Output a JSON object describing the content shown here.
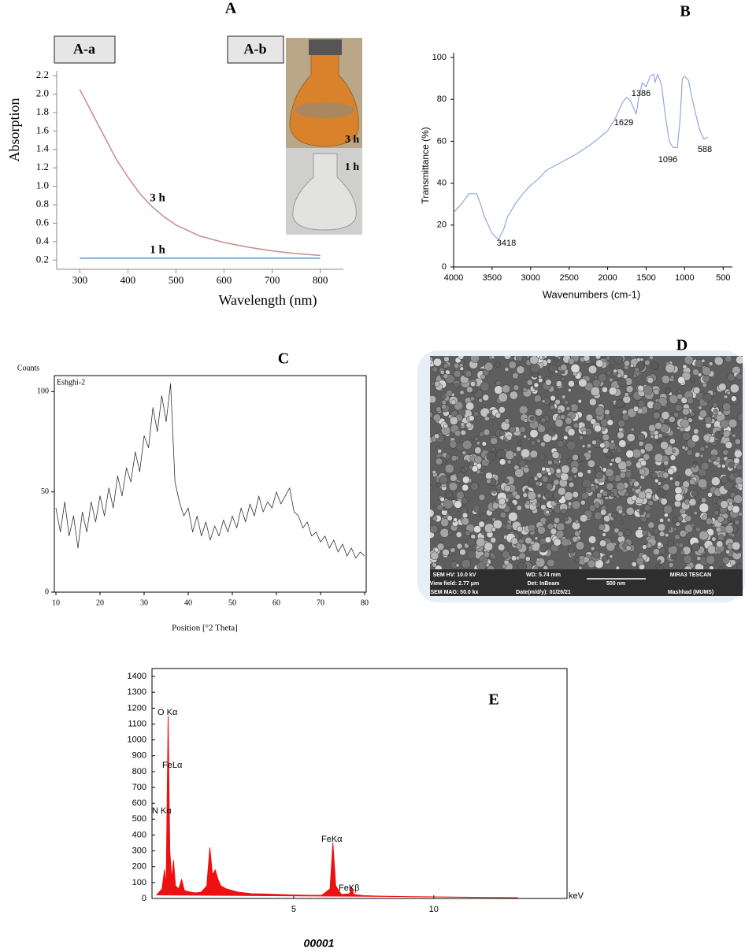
{
  "panel_a": {
    "label": "A",
    "boxes": [
      "A-a",
      "A-b"
    ],
    "photo_labels": [
      "3 h",
      "1 h"
    ]
  },
  "chart_data": [
    {
      "type": "line",
      "xlabel": "Wavelength (nm)",
      "ylabel": "Absorption",
      "x": [
        300,
        325,
        350,
        375,
        400,
        425,
        450,
        475,
        500,
        550,
        600,
        650,
        700,
        750,
        800
      ],
      "series": [
        {
          "name": "3 h",
          "color": "#c98a8a",
          "values": [
            2.05,
            1.8,
            1.55,
            1.3,
            1.1,
            0.92,
            0.78,
            0.67,
            0.58,
            0.46,
            0.39,
            0.34,
            0.3,
            0.27,
            0.25
          ]
        },
        {
          "name": "1 h",
          "color": "#5b9bd5",
          "values": [
            0.22,
            0.22,
            0.22,
            0.22,
            0.22,
            0.22,
            0.22,
            0.22,
            0.22,
            0.22,
            0.22,
            0.22,
            0.22,
            0.22,
            0.22
          ]
        }
      ],
      "xlim": [
        252,
        848
      ],
      "xticks": [
        300,
        400,
        500,
        600,
        700,
        800
      ],
      "ylim": [
        0.1,
        2.2
      ],
      "yticks": [
        0.2,
        0.4,
        0.6,
        0.8,
        {
          "value": 1,
          "label": "1.0"
        },
        1.2,
        1.4,
        1.6,
        1.8,
        {
          "value": 2,
          "label": "2.0"
        },
        2.2
      ]
    },
    {
      "type": "line",
      "panel_label": "B",
      "xlabel": "Wavenumbers (cm-1)",
      "ylabel": "Transmittance (%)",
      "x": [
        4000,
        3900,
        3800,
        3700,
        3650,
        3600,
        3500,
        3418,
        3350,
        3300,
        3200,
        3100,
        3000,
        2900,
        2800,
        2600,
        2400,
        2200,
        2000,
        1900,
        1800,
        1750,
        1700,
        1629,
        1600,
        1550,
        1500,
        1450,
        1400,
        1386,
        1350,
        1300,
        1250,
        1200,
        1150,
        1096,
        1060,
        1030,
        1000,
        950,
        900,
        850,
        800,
        750,
        700
      ],
      "series": [
        {
          "color": "#8ea9db",
          "values": [
            26,
            30,
            35,
            35,
            30,
            24,
            16,
            13,
            18,
            24,
            30,
            35,
            39,
            42,
            46,
            50,
            54,
            59,
            65,
            71,
            79,
            81,
            79,
            73,
            80,
            88,
            86,
            91,
            92,
            88,
            92,
            87,
            72,
            60,
            57,
            57,
            70,
            90,
            91,
            89,
            80,
            72,
            65,
            61,
            62
          ]
        }
      ],
      "peak_labels": [
        3418,
        1629,
        1386,
        1096,
        588
      ],
      "xlim": [
        4000,
        380
      ],
      "xticks": [
        4000,
        3500,
        3000,
        2500,
        2000,
        1500,
        1000,
        500
      ],
      "ylim": [
        0,
        100
      ],
      "yticks": [
        0,
        20,
        40,
        60,
        80,
        100
      ]
    },
    {
      "type": "line",
      "panel_label": "C",
      "title": "Eshghi-2",
      "xlabel": "Position [°2 Theta]",
      "ylabel": "Counts",
      "x": [
        10,
        11,
        12,
        13,
        14,
        15,
        16,
        17,
        18,
        19,
        20,
        21,
        22,
        23,
        24,
        25,
        26,
        27,
        28,
        29,
        30,
        31,
        32,
        33,
        34,
        35,
        36,
        37,
        38,
        39,
        40,
        41,
        42,
        43,
        44,
        45,
        46,
        47,
        48,
        49,
        50,
        51,
        52,
        53,
        54,
        55,
        56,
        57,
        58,
        59,
        60,
        61,
        62,
        63,
        64,
        65,
        66,
        67,
        68,
        69,
        70,
        71,
        72,
        73,
        74,
        75,
        76,
        77,
        78,
        79,
        80
      ],
      "series": [
        {
          "color": "#333333",
          "values": [
            42,
            30,
            45,
            28,
            38,
            22,
            40,
            30,
            45,
            35,
            48,
            38,
            52,
            42,
            58,
            48,
            62,
            55,
            70,
            60,
            78,
            72,
            92,
            80,
            98,
            85,
            104,
            55,
            45,
            38,
            42,
            30,
            38,
            28,
            35,
            26,
            33,
            28,
            36,
            30,
            38,
            32,
            42,
            35,
            44,
            38,
            48,
            40,
            45,
            42,
            50,
            44,
            48,
            52,
            40,
            38,
            32,
            35,
            28,
            30,
            25,
            28,
            22,
            26,
            20,
            24,
            18,
            22,
            17,
            20,
            18
          ]
        }
      ],
      "xlim": [
        10,
        80
      ],
      "xticks": [
        10,
        20,
        30,
        40,
        50,
        60,
        70,
        80
      ],
      "ylim": [
        0,
        108
      ],
      "yticks": [
        0,
        50,
        100
      ]
    },
    {
      "type": "area",
      "panel_label": "E",
      "xlabel": "keV",
      "x": [
        0.1,
        0.2,
        0.3,
        0.39,
        0.45,
        0.52,
        0.58,
        0.65,
        0.71,
        0.78,
        0.9,
        1.0,
        1.1,
        1.3,
        1.5,
        1.7,
        1.9,
        2.01,
        2.1,
        2.2,
        2.3,
        2.4,
        2.6,
        2.8,
        3.0,
        3.5,
        4.0,
        4.5,
        5.0,
        5.5,
        6.0,
        6.3,
        6.4,
        6.5,
        6.7,
        7.0,
        7.06,
        7.15,
        7.5,
        8,
        9,
        10,
        11,
        12,
        13
      ],
      "series": [
        {
          "color": "#ee1111",
          "values": [
            20,
            40,
            60,
            180,
            80,
            1150,
            300,
            120,
            240,
            80,
            60,
            120,
            50,
            40,
            35,
            40,
            80,
            320,
            150,
            180,
            120,
            80,
            60,
            50,
            40,
            30,
            28,
            25,
            22,
            20,
            20,
            60,
            350,
            80,
            25,
            30,
            70,
            25,
            18,
            15,
            12,
            10,
            8,
            6,
            5
          ]
        }
      ],
      "peak_labels": [
        "O Kα",
        "FeLα",
        "N Kα",
        "FeKα",
        "FeKβ"
      ],
      "xlim": [
        0,
        14.7
      ],
      "xticks": [
        5,
        10
      ],
      "ylim": [
        0,
        1450
      ],
      "yticks": [
        0,
        100,
        200,
        300,
        400,
        500,
        600,
        700,
        800,
        900,
        1000,
        1100,
        1200,
        1300,
        1400
      ]
    }
  ],
  "panel_d": {
    "label": "D",
    "info": [
      [
        "SEM HV: 10.0 kV",
        "WD: 5.74 mm",
        "MIRA3 TESCAN"
      ],
      [
        "View field: 2.77 μm",
        "Det: InBeam",
        "500 nm"
      ],
      [
        "SEM MAG: 50.0 kx",
        "Date(m/d/y): 01/26/21",
        "Mashhad (MUMS)"
      ]
    ]
  },
  "footer": "00001"
}
